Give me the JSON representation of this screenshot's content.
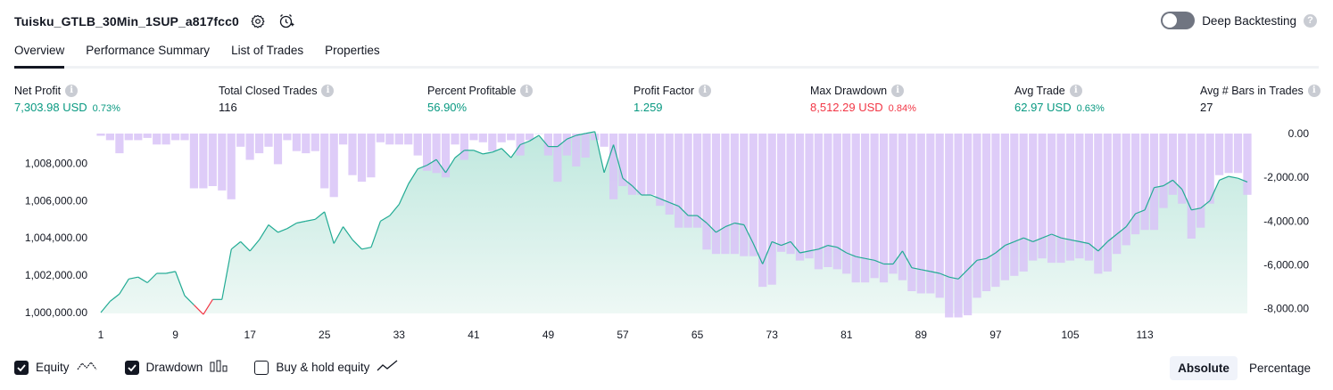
{
  "header": {
    "title": "Tuisku_GTLB_30Min_1SUP_a817fcc0",
    "settings_icon": "gear-icon",
    "alert_icon": "add-alert-icon"
  },
  "deep_backtesting": {
    "label": "Deep Backtesting",
    "enabled": false,
    "help": "?"
  },
  "tabs": [
    {
      "label": "Overview",
      "active": true
    },
    {
      "label": "Performance Summary",
      "active": false
    },
    {
      "label": "List of Trades",
      "active": false
    },
    {
      "label": "Properties",
      "active": false
    }
  ],
  "stats": [
    {
      "label": "Net Profit",
      "value": "7,303.98 USD",
      "pct": "0.73%",
      "color": "green"
    },
    {
      "label": "Total Closed Trades",
      "value": "116",
      "pct": "",
      "color": "dark"
    },
    {
      "label": "Percent Profitable",
      "value": "56.90%",
      "pct": "",
      "color": "green"
    },
    {
      "label": "Profit Factor",
      "value": "1.259",
      "pct": "",
      "color": "green"
    },
    {
      "label": "Max Drawdown",
      "value": "8,512.29 USD",
      "pct": "0.84%",
      "color": "red"
    },
    {
      "label": "Avg Trade",
      "value": "62.97 USD",
      "pct": "0.63%",
      "color": "green"
    },
    {
      "label": "Avg # Bars in Trades",
      "value": "27",
      "pct": "",
      "color": "dark"
    }
  ],
  "chart_data": {
    "type": "area",
    "series": [
      {
        "name": "Equity",
        "type": "area",
        "values": [
          1000000,
          1000600,
          1001000,
          1001800,
          1001900,
          1001600,
          1002100,
          1002100,
          1002200,
          1000900,
          1000400,
          999900,
          1000700,
          1000700,
          1003400,
          1003800,
          1003300,
          1003900,
          1004700,
          1004300,
          1004500,
          1004800,
          1004900,
          1005000,
          1005400,
          1003700,
          1004600,
          1003900,
          1003400,
          1003500,
          1004900,
          1005200,
          1005800,
          1006900,
          1007700,
          1007900,
          1008200,
          1007500,
          1008300,
          1008700,
          1008700,
          1008500,
          1008600,
          1008800,
          1008300,
          1009000,
          1009200,
          1009500,
          1008900,
          1008900,
          1009300,
          1009500,
          1009600,
          1009700,
          1007500,
          1009000,
          1007200,
          1006800,
          1006300,
          1006300,
          1006100,
          1005900,
          1005700,
          1005200,
          1005200,
          1004800,
          1004300,
          1004600,
          1004800,
          1004700,
          1003700,
          1002600,
          1003800,
          1003600,
          1003800,
          1003200,
          1003300,
          1003400,
          1003600,
          1003500,
          1003200,
          1003000,
          1002900,
          1002800,
          1002600,
          1002600,
          1003300,
          1002400,
          1002300,
          1002200,
          1002100,
          1001900,
          1001800,
          1002300,
          1002800,
          1002900,
          1003200,
          1003600,
          1003800,
          1004000,
          1003800,
          1004000,
          1004200,
          1004000,
          1003900,
          1003800,
          1003700,
          1003300,
          1003800,
          1004200,
          1004600,
          1005300,
          1005500,
          1006700,
          1006800,
          1007100,
          1006600,
          1005500,
          1005600,
          1006000,
          1007100,
          1007300,
          1007200,
          1007000
        ]
      },
      {
        "name": "Drawdown",
        "type": "bar",
        "values": [
          -100,
          -300,
          -900,
          -300,
          -300,
          -200,
          -500,
          -500,
          -300,
          -300,
          -2500,
          -2500,
          -2400,
          -2600,
          -3000,
          -600,
          -1200,
          -900,
          -600,
          -1400,
          -300,
          -800,
          -900,
          -800,
          -2500,
          -2900,
          -500,
          -1900,
          -2200,
          -2000,
          -400,
          -500,
          -500,
          -500,
          -1000,
          -1700,
          -1800,
          -2000,
          -500,
          -1200,
          -300,
          -400,
          -800,
          -400,
          -300,
          -1000,
          -300,
          0,
          -1000,
          -2200,
          -1000,
          -1500,
          -1100,
          -300,
          -600,
          -3000,
          -2400,
          -2800,
          -2800,
          -2800,
          -3300,
          -3700,
          -4300,
          -4300,
          -4300,
          -5300,
          -5500,
          -5500,
          -5500,
          -5600,
          -5600,
          -7000,
          -6900,
          -5400,
          -5500,
          -5800,
          -5700,
          -6200,
          -6100,
          -6200,
          -6400,
          -6800,
          -6800,
          -6600,
          -6800,
          -6400,
          -6700,
          -7200,
          -7300,
          -7300,
          -7500,
          -8400,
          -8400,
          -8300,
          -7500,
          -7200,
          -7000,
          -6700,
          -6500,
          -6300,
          -5800,
          -5700,
          -5900,
          -5900,
          -5800,
          -5700,
          -5800,
          -6400,
          -6300,
          -5500,
          -5100,
          -4600,
          -4400,
          -4400,
          -3400,
          -2800,
          -3200,
          -4800,
          -4300,
          -3200,
          -1900,
          -1800,
          -1800,
          -2800
        ]
      }
    ],
    "x_ticks": [
      "1",
      "9",
      "17",
      "25",
      "33",
      "41",
      "49",
      "57",
      "65",
      "73",
      "81",
      "89",
      "97",
      "105",
      "113"
    ],
    "y_left_ticks": [
      "1,000,000.00",
      "1,002,000.00",
      "1,004,000.00",
      "1,006,000.00",
      "1,008,000.00"
    ],
    "y_right_ticks": [
      "0.00",
      "-2,000.00",
      "-4,000.00",
      "-6,000.00",
      "-8,000.00"
    ],
    "ylim_left": [
      1000000,
      1009500
    ],
    "ylim_right": [
      -8500,
      0
    ],
    "colors": {
      "equity_line": "#22ab94",
      "equity_fill": "#d7f0ea",
      "equity_neg_line": "#f23645",
      "drawdown_bar": "#d8c3f7"
    }
  },
  "legend": [
    {
      "label": "Equity",
      "checked": true,
      "icon": "equity-line-icon"
    },
    {
      "label": "Drawdown",
      "checked": true,
      "icon": "drawdown-bars-icon"
    },
    {
      "label": "Buy & hold equity",
      "checked": false,
      "icon": "buy-hold-line-icon"
    }
  ],
  "mode": {
    "absolute": "Absolute",
    "percentage": "Percentage",
    "selected": "Absolute"
  }
}
